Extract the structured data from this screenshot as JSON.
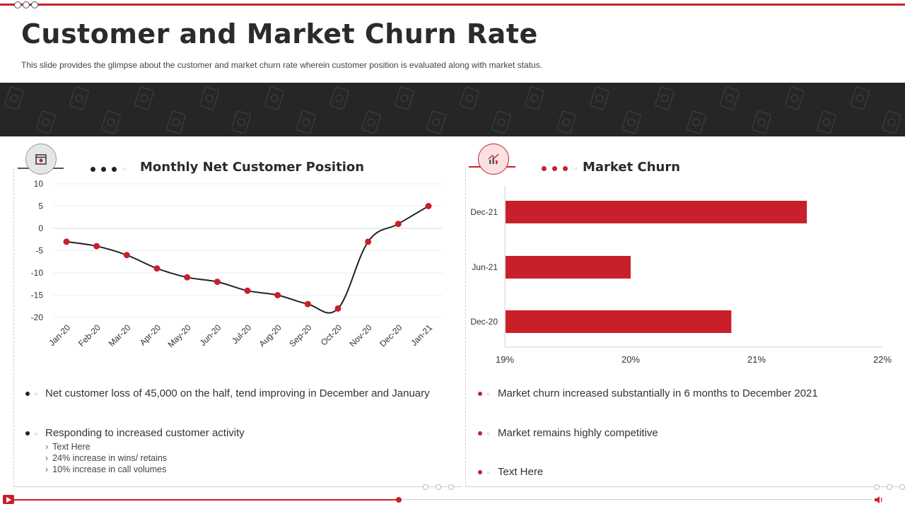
{
  "slide": {
    "title": "Customer and Market Churn Rate",
    "subtitle": "This slide provides the glimpse about the customer and market churn rate wherein customer position is evaluated along with market status."
  },
  "left": {
    "heading": "Monthly Net Customer Position",
    "bullets": [
      "Net customer loss of 45,000 on the half, tend improving in December and January",
      "Responding to increased customer activity"
    ],
    "subitems": [
      "Text Here",
      "24% increase in wins/ retains",
      "10% increase in call volumes"
    ]
  },
  "right": {
    "heading": "Market Churn",
    "bullets": [
      "Market churn increased substantially in 6 months to December 2021",
      "Market remains highly competitive",
      "Text Here"
    ]
  },
  "colors": {
    "accent": "#c8202a",
    "dark": "#262626",
    "line": "#222222"
  },
  "chart_data": [
    {
      "type": "line",
      "title": "Monthly Net Customer Position",
      "categories": [
        "Jan-20",
        "Feb-20",
        "Mar-20",
        "Apr-20",
        "May-20",
        "Jun-20",
        "Jul-20",
        "Aug-20",
        "Sep-20",
        "Oct-20",
        "Nov-20",
        "Dec-20",
        "Jan-21"
      ],
      "values": [
        -3,
        -4,
        -6,
        -9,
        -11,
        -12,
        -14,
        -15,
        -17,
        -18,
        -3,
        1,
        5
      ],
      "yticks": [
        10,
        5,
        0,
        -5,
        -10,
        -15,
        -20
      ],
      "ylim": [
        -20,
        10
      ],
      "grid": true
    },
    {
      "type": "bar",
      "orientation": "horizontal",
      "title": "Market Churn",
      "categories": [
        "Dec-21",
        "Jun-21",
        "Dec-20"
      ],
      "values": [
        21.4,
        20.0,
        20.8
      ],
      "xticks": [
        "19%",
        "20%",
        "21%",
        "22%"
      ],
      "xlim": [
        19,
        22
      ]
    }
  ]
}
